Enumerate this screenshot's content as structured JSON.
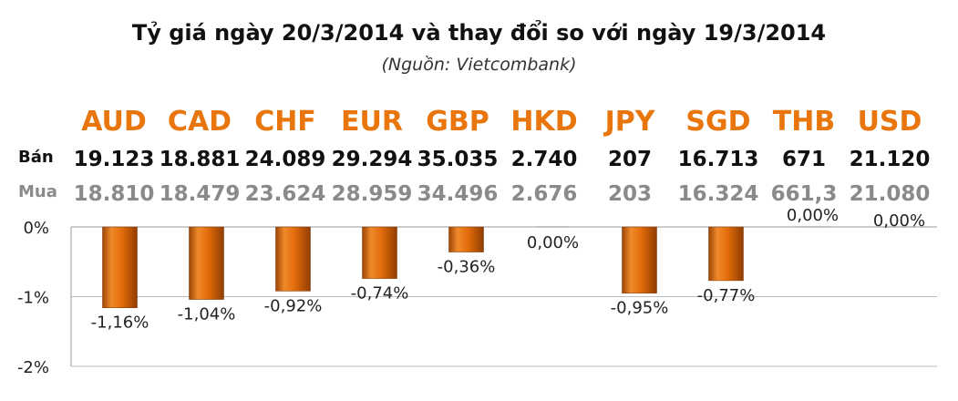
{
  "title": "Tỷ giá ngày 20/3/2014 và thay đổi so với ngày 19/3/2014",
  "subtitle": "(Nguồn: Vietcombank)",
  "row_labels": {
    "sell": "Bán",
    "buy": "Mua"
  },
  "currencies": [
    {
      "code": "AUD",
      "sell": "19.123",
      "buy": "18.810"
    },
    {
      "code": "CAD",
      "sell": "18.881",
      "buy": "18.479"
    },
    {
      "code": "CHF",
      "sell": "24.089",
      "buy": "23.624"
    },
    {
      "code": "EUR",
      "sell": "29.294",
      "buy": "28.959"
    },
    {
      "code": "GBP",
      "sell": "35.035",
      "buy": "34.496"
    },
    {
      "code": "HKD",
      "sell": "2.740",
      "buy": "2.676"
    },
    {
      "code": "JPY",
      "sell": "207",
      "buy": "203"
    },
    {
      "code": "SGD",
      "sell": "16.713",
      "buy": "16.324"
    },
    {
      "code": "THB",
      "sell": "671",
      "buy": "661,3"
    },
    {
      "code": "USD",
      "sell": "21.120",
      "buy": "21.080"
    }
  ],
  "chart_data": {
    "type": "bar",
    "categories": [
      "AUD",
      "CAD",
      "CHF",
      "EUR",
      "GBP",
      "HKD",
      "JPY",
      "SGD",
      "THB",
      "USD"
    ],
    "values": [
      -1.16,
      -1.04,
      -0.92,
      -0.74,
      -0.36,
      0.0,
      -0.95,
      -0.77,
      0.0,
      0.0
    ],
    "data_labels": [
      "-1,16%",
      "-1,04%",
      "-0,92%",
      "-0,74%",
      "-0,36%",
      "0,00%",
      "-0,95%",
      "-0,77%",
      "0,00%",
      "0,00%"
    ],
    "yticks": [
      0,
      -1,
      -2
    ],
    "ytick_labels": [
      "0%",
      "-1%",
      "-2%"
    ],
    "ylim": [
      -2,
      0
    ],
    "grid": true,
    "bar_color": "#e36c0a"
  }
}
